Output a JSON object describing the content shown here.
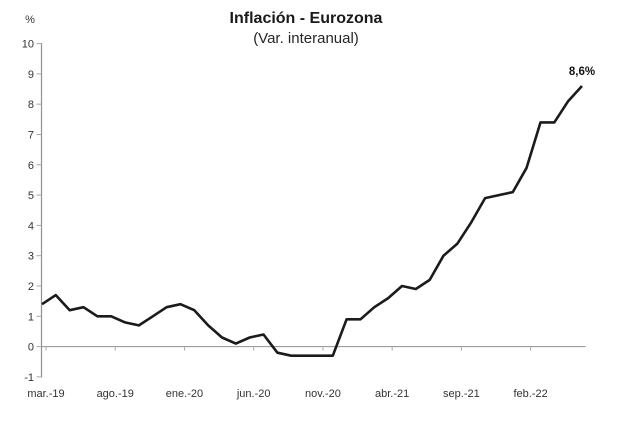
{
  "header": {
    "title": "Inflación - Eurozona",
    "subtitle": "(Var. interanual)",
    "y_axis_unit": "%"
  },
  "chart_data": {
    "type": "line",
    "title": "Inflación - Eurozona",
    "subtitle": "(Var. interanual)",
    "ylabel": "%",
    "xlabel": "",
    "ylim": [
      -1,
      10
    ],
    "grid": false,
    "legend": "none",
    "x": [
      "mar.-19",
      "abr.-19",
      "may.-19",
      "jun.-19",
      "jul.-19",
      "ago.-19",
      "sep.-19",
      "oct.-19",
      "nov.-19",
      "dic.-19",
      "ene.-20",
      "feb.-20",
      "mar.-20",
      "abr.-20",
      "may.-20",
      "jun.-20",
      "jul.-20",
      "ago.-20",
      "sep.-20",
      "oct.-20",
      "nov.-20",
      "dic.-20",
      "ene.-21",
      "feb.-21",
      "mar.-21",
      "abr.-21",
      "may.-21",
      "jun.-21",
      "jul.-21",
      "ago.-21",
      "sep.-21",
      "oct.-21",
      "nov.-21",
      "dic.-21",
      "ene.-22",
      "feb.-22",
      "mar.-22",
      "abr.-22",
      "may.-22",
      "jun.-22"
    ],
    "values": [
      1.4,
      1.7,
      1.2,
      1.3,
      1.0,
      1.0,
      0.8,
      0.7,
      1.0,
      1.3,
      1.4,
      1.2,
      0.7,
      0.3,
      0.1,
      0.3,
      0.4,
      -0.2,
      -0.3,
      -0.3,
      -0.3,
      -0.3,
      0.9,
      0.9,
      1.3,
      1.6,
      2.0,
      1.9,
      2.2,
      3.0,
      3.4,
      4.1,
      4.9,
      5.0,
      5.1,
      5.9,
      7.4,
      7.4,
      8.1,
      8.6
    ],
    "y_ticks": [
      -1,
      0,
      1,
      2,
      3,
      4,
      5,
      6,
      7,
      8,
      9,
      10
    ],
    "x_tick_labels": [
      "mar.-19",
      "ago.-19",
      "ene.-20",
      "jun.-20",
      "nov.-20",
      "abr.-21",
      "sep.-21",
      "feb.-22"
    ],
    "x_tick_indices": [
      0,
      5,
      10,
      15,
      20,
      25,
      30,
      35
    ],
    "annotation": {
      "text": "8,6%",
      "index": 39,
      "value": 8.6
    },
    "line_color": "#1b1b1b",
    "axis_color": "#909090",
    "tick_color": "#a8a8a8",
    "label_color": "#333333"
  }
}
